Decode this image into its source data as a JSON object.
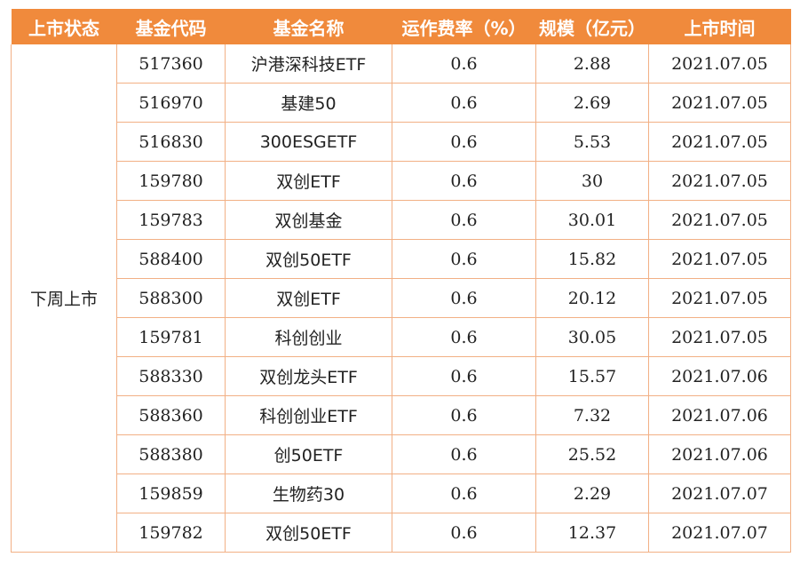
{
  "table": {
    "headers": [
      "上市状态",
      "基金代码",
      "基金名称",
      "运作费率（%）",
      "规模（亿元）",
      "上市时间"
    ],
    "status": "下周上市",
    "rows": [
      {
        "code": "517360",
        "name": "沪港深科技ETF",
        "fee": "0.6",
        "scale": "2.88",
        "date": "2021.07.05"
      },
      {
        "code": "516970",
        "name": "基建50",
        "fee": "0.6",
        "scale": "2.69",
        "date": "2021.07.05"
      },
      {
        "code": "516830",
        "name": "300ESGETF",
        "fee": "0.6",
        "scale": "5.53",
        "date": "2021.07.05"
      },
      {
        "code": "159780",
        "name": "双创ETF",
        "fee": "0.6",
        "scale": "30",
        "date": "2021.07.05"
      },
      {
        "code": "159783",
        "name": "双创基金",
        "fee": "0.6",
        "scale": "30.01",
        "date": "2021.07.05"
      },
      {
        "code": "588400",
        "name": "双创50ETF",
        "fee": "0.6",
        "scale": "15.82",
        "date": "2021.07.05"
      },
      {
        "code": "588300",
        "name": "双创ETF",
        "fee": "0.6",
        "scale": "20.12",
        "date": "2021.07.05"
      },
      {
        "code": "159781",
        "name": "科创创业",
        "fee": "0.6",
        "scale": "30.05",
        "date": "2021.07.05"
      },
      {
        "code": "588330",
        "name": "双创龙头ETF",
        "fee": "0.6",
        "scale": "15.57",
        "date": "2021.07.06"
      },
      {
        "code": "588360",
        "name": "科创创业ETF",
        "fee": "0.6",
        "scale": "7.32",
        "date": "2021.07.06"
      },
      {
        "code": "588380",
        "name": "创50ETF",
        "fee": "0.6",
        "scale": "25.52",
        "date": "2021.07.06"
      },
      {
        "code": "159859",
        "name": "生物药30",
        "fee": "0.6",
        "scale": "2.29",
        "date": "2021.07.07"
      },
      {
        "code": "159782",
        "name": "双创50ETF",
        "fee": "0.6",
        "scale": "12.37",
        "date": "2021.07.07"
      }
    ]
  },
  "colors": {
    "header_bg": "#f08a3c",
    "border": "#f2b085",
    "text": "#222222"
  }
}
